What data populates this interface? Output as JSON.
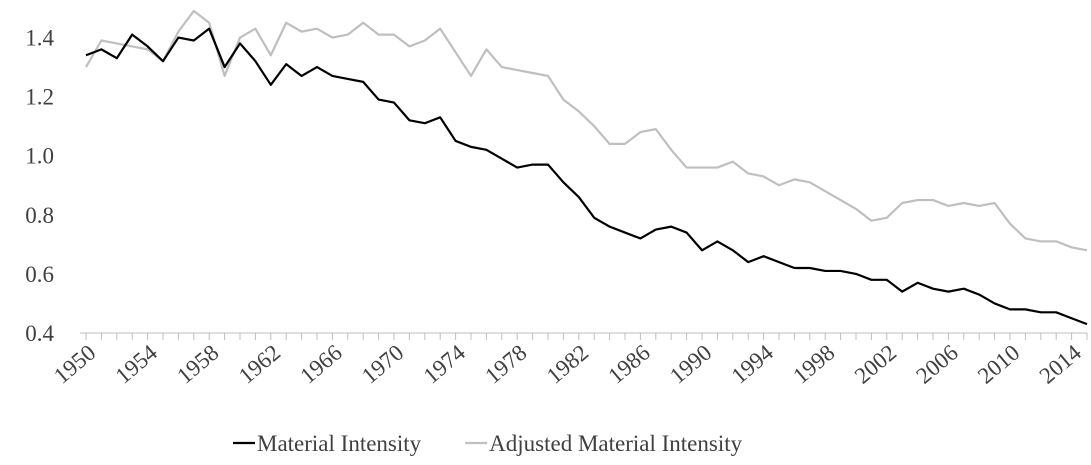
{
  "chart_data": {
    "type": "line",
    "x": [
      1950,
      1951,
      1952,
      1953,
      1954,
      1955,
      1956,
      1957,
      1958,
      1959,
      1960,
      1961,
      1962,
      1963,
      1964,
      1965,
      1966,
      1967,
      1968,
      1969,
      1970,
      1971,
      1972,
      1973,
      1974,
      1975,
      1976,
      1977,
      1978,
      1979,
      1980,
      1981,
      1982,
      1983,
      1984,
      1985,
      1986,
      1987,
      1988,
      1989,
      1990,
      1991,
      1992,
      1993,
      1994,
      1995,
      1996,
      1997,
      1998,
      1999,
      2000,
      2001,
      2002,
      2003,
      2004,
      2005,
      2006,
      2007,
      2008,
      2009,
      2010,
      2011,
      2012,
      2013,
      2014,
      2015
    ],
    "series": [
      {
        "name": "Material Intensity",
        "color": "#000000",
        "values": [
          1.34,
          1.36,
          1.33,
          1.41,
          1.37,
          1.32,
          1.4,
          1.39,
          1.43,
          1.3,
          1.38,
          1.32,
          1.24,
          1.31,
          1.27,
          1.3,
          1.27,
          1.26,
          1.25,
          1.19,
          1.18,
          1.12,
          1.11,
          1.13,
          1.05,
          1.03,
          1.02,
          0.99,
          0.96,
          0.97,
          0.97,
          0.91,
          0.86,
          0.79,
          0.76,
          0.74,
          0.72,
          0.75,
          0.76,
          0.74,
          0.68,
          0.71,
          0.68,
          0.64,
          0.66,
          0.64,
          0.62,
          0.62,
          0.61,
          0.61,
          0.6,
          0.58,
          0.58,
          0.54,
          0.57,
          0.55,
          0.54,
          0.55,
          0.53,
          0.5,
          0.48,
          0.48,
          0.47,
          0.47,
          0.45,
          0.43
        ]
      },
      {
        "name": "Adjusted Material Intensity",
        "color": "#bfbfbf",
        "values": [
          1.3,
          1.39,
          1.38,
          1.37,
          1.36,
          1.32,
          1.42,
          1.49,
          1.45,
          1.27,
          1.4,
          1.43,
          1.34,
          1.45,
          1.42,
          1.43,
          1.4,
          1.41,
          1.45,
          1.41,
          1.41,
          1.37,
          1.39,
          1.43,
          1.35,
          1.27,
          1.36,
          1.3,
          1.29,
          1.28,
          1.27,
          1.19,
          1.15,
          1.1,
          1.04,
          1.04,
          1.08,
          1.09,
          1.02,
          0.96,
          0.96,
          0.96,
          0.98,
          0.94,
          0.93,
          0.9,
          0.92,
          0.91,
          0.88,
          0.85,
          0.82,
          0.78,
          0.79,
          0.84,
          0.85,
          0.85,
          0.83,
          0.84,
          0.83,
          0.84,
          0.77,
          0.72,
          0.71,
          0.71,
          0.69,
          0.68
        ]
      }
    ],
    "xlim": [
      1950,
      2015
    ],
    "xticks": [
      1950,
      1954,
      1958,
      1962,
      1966,
      1970,
      1974,
      1978,
      1982,
      1986,
      1990,
      1994,
      1998,
      2002,
      2006,
      2010,
      2014
    ],
    "ylim": [
      0.4,
      1.5
    ],
    "yticks": [
      0.4,
      0.6,
      0.8,
      {
        "value": 1,
        "label": "1.0"
      },
      1.2,
      1.4
    ],
    "grid": false,
    "legend": "bottom"
  }
}
